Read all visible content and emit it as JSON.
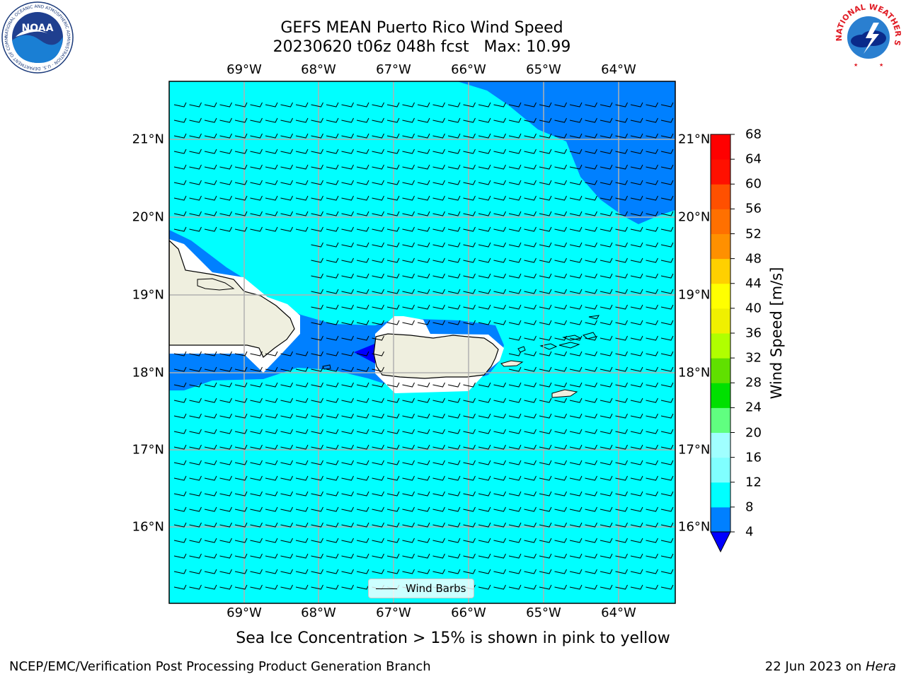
{
  "title": {
    "line1": "GEFS MEAN Puerto Rico Wind Speed",
    "line2": "20230620 t06z 048h fcst   Max: 10.99"
  },
  "logos": {
    "left": "noaa-logo",
    "right": "nws-logo",
    "left_text": "NOAA",
    "left_ring_text": "NATIONAL OCEANIC AND ATMOSPHERIC ADMINISTRATION · U.S. DEPARTMENT OF COMMERCE",
    "right_ring_text": "NATIONAL WEATHER SERVICE"
  },
  "map": {
    "lon_labels": [
      "69°W",
      "68°W",
      "67°W",
      "66°W",
      "65°W",
      "64°W"
    ],
    "lat_labels": [
      "21°N",
      "20°N",
      "19°N",
      "18°N",
      "17°N",
      "16°N"
    ],
    "lon_range": [
      -70.0,
      -63.25
    ],
    "lat_range": [
      15.05,
      21.75
    ],
    "land_color": "#efefdf",
    "gridlines": true,
    "barb_legend_label": "Wind Barbs"
  },
  "colorbar": {
    "label": "Wind Speed [m/s]",
    "ticks": [
      "4",
      "8",
      "12",
      "16",
      "20",
      "24",
      "28",
      "32",
      "36",
      "40",
      "44",
      "48",
      "52",
      "56",
      "60",
      "64",
      "68"
    ],
    "extend_min_color": "#0000ff",
    "colors": [
      "#0080ff",
      "#00ffff",
      "#40ffff",
      "#80ffff",
      "#a0ffff",
      "#60ff80",
      "#00ff40",
      "#00e000",
      "#60e000",
      "#b0ff00",
      "#d0f000",
      "#f0f000",
      "#ffff00",
      "#ffd000",
      "#ffb000",
      "#ff9000",
      "#ff7000",
      "#ff5000",
      "#ff3000",
      "#ff1000",
      "#ff0000"
    ]
  },
  "note": "Sea Ice Concentration > 15% is shown in pink to yellow",
  "footer": {
    "left": "NCEP/EMC/Verification Post Processing Product Generation Branch",
    "right_prefix": "22 Jun 2023 on ",
    "right_host": "Hera"
  }
}
